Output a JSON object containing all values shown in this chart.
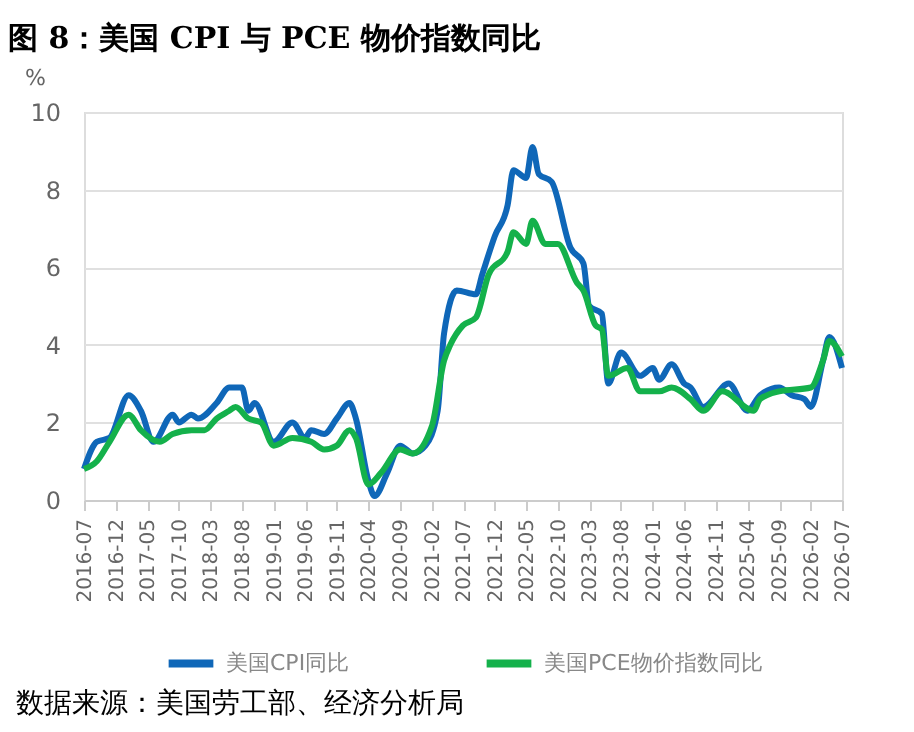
{
  "chart_data": {
    "type": "line",
    "title": "图 8：美国 CPI 与 PCE 物价指数同比",
    "ylabel": "%",
    "xlim": [
      "2016-07",
      "2026-07"
    ],
    "xticks": [
      "2016-07",
      "2016-12",
      "2017-05",
      "2017-10",
      "2018-03",
      "2018-08",
      "2019-01",
      "2019-06",
      "2019-11",
      "2020-04",
      "2020-09",
      "2021-02",
      "2021-07",
      "2021-12",
      "2022-05",
      "2022-10",
      "2023-03",
      "2023-08",
      "2024-01",
      "2024-06",
      "2024-11",
      "2025-04",
      "2025-09",
      "2026-02",
      "2026-07"
    ],
    "ylim": [
      0,
      10
    ],
    "yticks": [
      0,
      2,
      4,
      6,
      8,
      10
    ],
    "grid": "y",
    "legend": "bottom",
    "line_style": "solid",
    "marker": "none",
    "series": [
      {
        "name": "美国CPI同比",
        "color": "#0f67b8",
        "x": [
          "2016-07",
          "2016-09",
          "2016-11",
          "2017-02",
          "2017-04",
          "2017-06",
          "2017-09",
          "2017-10",
          "2017-12",
          "2018-01",
          "2018-04",
          "2018-06",
          "2018-08",
          "2018-09",
          "2018-10",
          "2019-01",
          "2019-04",
          "2019-06",
          "2019-07",
          "2019-09",
          "2019-11",
          "2020-01",
          "2020-02",
          "2020-04",
          "2020-05",
          "2020-07",
          "2020-09",
          "2020-11",
          "2021-01",
          "2021-03",
          "2021-04",
          "2021-06",
          "2021-09",
          "2021-10",
          "2021-12",
          "2022-02",
          "2022-03",
          "2022-05",
          "2022-06",
          "2022-07",
          "2022-09",
          "2022-12",
          "2023-02",
          "2023-03",
          "2023-05",
          "2023-06",
          "2023-08",
          "2023-11",
          "2024-01",
          "2024-02",
          "2024-04",
          "2024-06",
          "2024-07",
          "2024-09",
          "2025-01",
          "2025-04",
          "2025-06",
          "2025-09",
          "2025-11",
          "2026-01",
          "2026-02",
          "2026-04",
          "2026-05",
          "2026-07"
        ],
        "values": [
          0.8,
          1.5,
          1.6,
          2.7,
          2.3,
          1.5,
          2.2,
          2.0,
          2.2,
          2.1,
          2.5,
          2.9,
          2.9,
          2.3,
          2.5,
          1.5,
          2.0,
          1.6,
          1.8,
          1.7,
          2.1,
          2.5,
          2.1,
          0.5,
          0.1,
          0.7,
          1.4,
          1.2,
          1.4,
          2.3,
          4.3,
          5.4,
          5.3,
          5.8,
          6.8,
          7.6,
          8.5,
          8.3,
          9.1,
          8.4,
          8.2,
          6.5,
          6.1,
          5.0,
          4.8,
          3.0,
          3.8,
          3.2,
          3.4,
          3.1,
          3.5,
          3.0,
          2.9,
          2.4,
          3.0,
          2.3,
          2.7,
          2.9,
          2.7,
          2.6,
          2.4,
          3.6,
          4.2,
          3.4
        ]
      },
      {
        "name": "美国PCE物价指数同比",
        "color": "#14b14b",
        "x": [
          "2016-07",
          "2016-09",
          "2016-11",
          "2017-02",
          "2017-04",
          "2017-07",
          "2017-09",
          "2017-12",
          "2018-02",
          "2018-04",
          "2018-06",
          "2018-07",
          "2018-09",
          "2018-11",
          "2019-01",
          "2019-04",
          "2019-07",
          "2019-09",
          "2019-11",
          "2020-01",
          "2020-02",
          "2020-04",
          "2020-06",
          "2020-09",
          "2020-11",
          "2021-02",
          "2021-04",
          "2021-05",
          "2021-07",
          "2021-09",
          "2021-11",
          "2022-02",
          "2022-03",
          "2022-05",
          "2022-06",
          "2022-08",
          "2022-10",
          "2023-01",
          "2023-02",
          "2023-04",
          "2023-05",
          "2023-06",
          "2023-09",
          "2023-11",
          "2024-02",
          "2024-04",
          "2024-07",
          "2024-09",
          "2024-12",
          "2025-05",
          "2025-06",
          "2025-09",
          "2026-02",
          "2026-04",
          "2026-05",
          "2026-07"
        ],
        "values": [
          0.8,
          1.0,
          1.5,
          2.2,
          1.8,
          1.5,
          1.7,
          1.8,
          1.8,
          2.1,
          2.3,
          2.4,
          2.1,
          2.0,
          1.4,
          1.6,
          1.5,
          1.3,
          1.4,
          1.8,
          1.6,
          0.4,
          0.7,
          1.3,
          1.2,
          1.9,
          3.6,
          4.0,
          4.5,
          4.7,
          5.8,
          6.4,
          6.9,
          6.6,
          7.2,
          6.6,
          6.6,
          5.6,
          5.4,
          4.5,
          4.4,
          3.2,
          3.4,
          2.8,
          2.8,
          2.9,
          2.6,
          2.3,
          2.8,
          2.3,
          2.6,
          2.8,
          2.9,
          3.6,
          4.1,
          3.7
        ]
      }
    ],
    "annotations": [
      "数据来源：美国劳工部、经济分析局"
    ]
  }
}
